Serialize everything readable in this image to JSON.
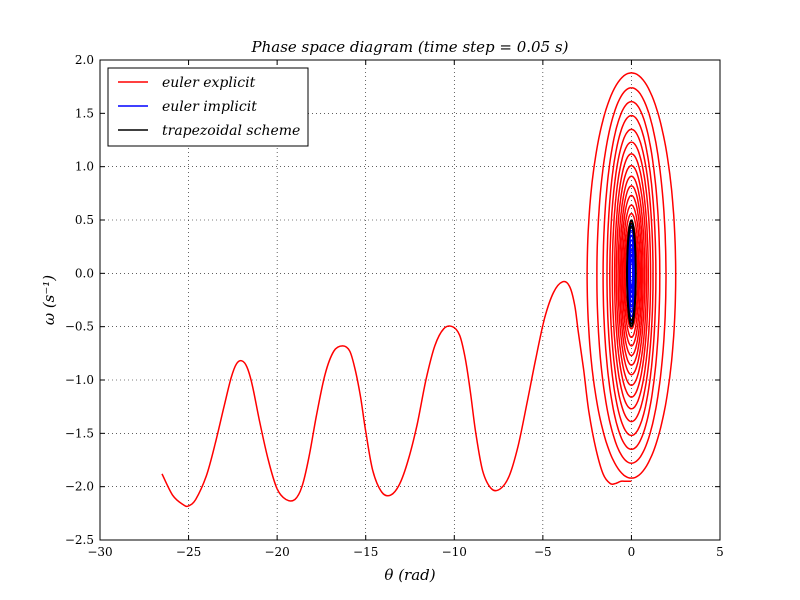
{
  "chart_data": {
    "type": "line",
    "title": "Phase space diagram (time step = 0.05 s)",
    "xlabel": "θ (rad)",
    "ylabel": "ω (s⁻¹)",
    "xlim": [
      -30,
      5
    ],
    "ylim": [
      -2.5,
      2.0
    ],
    "xticks": [
      -30,
      -25,
      -20,
      -15,
      -10,
      -5,
      0,
      5
    ],
    "yticks": [
      -2.5,
      -2.0,
      -1.5,
      -1.0,
      -0.5,
      0.0,
      0.5,
      1.0,
      1.5,
      2.0
    ],
    "xtick_labels": [
      "−30",
      "−25",
      "−20",
      "−15",
      "−10",
      "−5",
      "0",
      "5"
    ],
    "ytick_labels": [
      "−2.5",
      "−2.0",
      "−1.5",
      "−1.0",
      "−0.5",
      "0.0",
      "0.5",
      "1.0",
      "1.5",
      "2.0"
    ],
    "grid": true,
    "legend_position": "top-left",
    "series": [
      {
        "name": "euler explicit",
        "color": "#ff0000",
        "x": [
          -26.5,
          -25.9,
          -25.3,
          -25.0,
          -24.6,
          -24.0,
          -23.5,
          -23.0,
          -22.6,
          -22.3,
          -22.0,
          -21.7,
          -21.4,
          -21.0,
          -20.5,
          -20.0,
          -19.5,
          -19.0,
          -18.6,
          -18.2,
          -17.8,
          -17.3,
          -16.8,
          -16.3,
          -15.9,
          -15.6,
          -15.3,
          -15.0,
          -14.6,
          -14.1,
          -13.6,
          -13.1,
          -12.6,
          -12.1,
          -11.6,
          -11.1,
          -10.6,
          -10.1,
          -9.7,
          -9.4,
          -9.1,
          -8.8,
          -8.4,
          -7.9,
          -7.4,
          -6.9,
          -6.4,
          -5.9,
          -5.4,
          -4.9,
          -4.4,
          -3.9,
          -3.5,
          -3.2,
          -3.0,
          -2.7,
          -2.4,
          -2.0,
          -1.6,
          -1.2,
          -0.9,
          -0.6,
          -0.3,
          0.0
        ],
        "y": [
          -1.88,
          -2.08,
          -2.17,
          -2.18,
          -2.12,
          -1.9,
          -1.6,
          -1.25,
          -0.98,
          -0.85,
          -0.82,
          -0.88,
          -1.05,
          -1.38,
          -1.75,
          -2.02,
          -2.12,
          -2.12,
          -2.0,
          -1.72,
          -1.35,
          -0.95,
          -0.73,
          -0.68,
          -0.73,
          -0.9,
          -1.15,
          -1.48,
          -1.85,
          -2.05,
          -2.08,
          -1.98,
          -1.75,
          -1.42,
          -1.0,
          -0.68,
          -0.52,
          -0.5,
          -0.58,
          -0.78,
          -1.1,
          -1.48,
          -1.85,
          -2.02,
          -2.02,
          -1.9,
          -1.62,
          -1.22,
          -0.8,
          -0.42,
          -0.18,
          -0.08,
          -0.12,
          -0.3,
          -0.55,
          -0.9,
          -1.3,
          -1.65,
          -1.88,
          -1.97,
          -1.97,
          -1.95,
          -1.95,
          -1.95
        ]
      },
      {
        "name": "euler implicit",
        "color": "#0000ff",
        "x": [
          0.0,
          0.1,
          0.17,
          0.2,
          0.17,
          0.1,
          0.0,
          -0.1,
          -0.17,
          -0.2,
          -0.17,
          -0.1,
          0.0
        ],
        "y": [
          0.45,
          0.39,
          0.22,
          0.0,
          -0.22,
          -0.39,
          -0.45,
          -0.39,
          -0.22,
          0.0,
          0.22,
          0.39,
          0.45
        ]
      },
      {
        "name": "trapezoidal scheme",
        "color": "#000000",
        "x": [
          0.0,
          0.13,
          0.22,
          0.26,
          0.22,
          0.13,
          0.0,
          -0.13,
          -0.22,
          -0.26,
          -0.22,
          -0.13,
          0.0
        ],
        "y": [
          0.5,
          0.43,
          0.25,
          0.0,
          -0.25,
          -0.43,
          -0.5,
          -0.43,
          -0.25,
          0.0,
          0.25,
          0.43,
          0.5
        ]
      }
    ],
    "spiral_loops": {
      "series": "euler explicit",
      "center": [
        0.0,
        -0.02
      ],
      "amplitudes_omega": [
        0.5,
        0.58,
        0.66,
        0.75,
        0.84,
        0.93,
        1.03,
        1.14,
        1.25,
        1.37,
        1.5,
        1.63,
        1.76,
        1.9
      ],
      "amplitudes_theta": [
        0.35,
        0.42,
        0.5,
        0.58,
        0.66,
        0.75,
        0.85,
        0.95,
        1.08,
        1.22,
        1.38,
        1.6,
        1.95,
        2.5
      ]
    }
  }
}
